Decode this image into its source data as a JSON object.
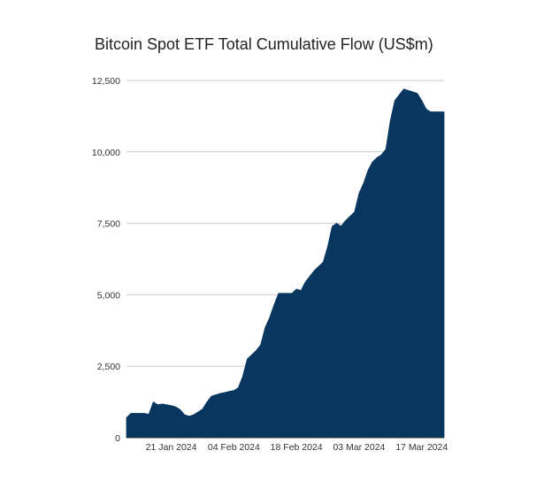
{
  "chart_data": {
    "type": "area",
    "title": "Bitcoin Spot ETF Total Cumulative Flow (US$m)",
    "xlabel": "",
    "ylabel": "",
    "ylim": [
      0,
      12500
    ],
    "y_ticks": [
      0,
      2500,
      5000,
      7500,
      10000,
      12500
    ],
    "y_tick_labels": [
      "0",
      "2,500",
      "5,000",
      "7,500",
      "10,000",
      "12,500"
    ],
    "x_range": [
      "2024-01-11",
      "2024-03-22"
    ],
    "x_ticks": [
      "2024-01-21",
      "2024-02-04",
      "2024-02-18",
      "2024-03-03",
      "2024-03-17"
    ],
    "x_tick_labels": [
      "21 Jan 2024",
      "04 Feb 2024",
      "18 Feb 2024",
      "03 Mar 2024",
      "17 Mar 2024"
    ],
    "grid": true,
    "legend": "none",
    "color": "#08365f",
    "series": [
      {
        "x": [
          "2024-01-11",
          "2024-01-12",
          "2024-01-13",
          "2024-01-14",
          "2024-01-15",
          "2024-01-16",
          "2024-01-17",
          "2024-01-18",
          "2024-01-19",
          "2024-01-20",
          "2024-01-21",
          "2024-01-22",
          "2024-01-23",
          "2024-01-24",
          "2024-01-25",
          "2024-01-26",
          "2024-01-27",
          "2024-01-28",
          "2024-01-29",
          "2024-01-30",
          "2024-01-31",
          "2024-02-01",
          "2024-02-02",
          "2024-02-03",
          "2024-02-04",
          "2024-02-05",
          "2024-02-06",
          "2024-02-07",
          "2024-02-08",
          "2024-02-09",
          "2024-02-10",
          "2024-02-11",
          "2024-02-12",
          "2024-02-13",
          "2024-02-14",
          "2024-02-15",
          "2024-02-16",
          "2024-02-17",
          "2024-02-18",
          "2024-02-19",
          "2024-02-20",
          "2024-02-21",
          "2024-02-22",
          "2024-02-23",
          "2024-02-24",
          "2024-02-25",
          "2024-02-26",
          "2024-02-27",
          "2024-02-28",
          "2024-02-29",
          "2024-03-01",
          "2024-03-02",
          "2024-03-03",
          "2024-03-04",
          "2024-03-05",
          "2024-03-06",
          "2024-03-07",
          "2024-03-08",
          "2024-03-09",
          "2024-03-10",
          "2024-03-11",
          "2024-03-12",
          "2024-03-13",
          "2024-03-14",
          "2024-03-15",
          "2024-03-16",
          "2024-03-17",
          "2024-03-18",
          "2024-03-19",
          "2024-03-20",
          "2024-03-21",
          "2024-03-22"
        ],
        "values": [
          700,
          850,
          850,
          850,
          850,
          820,
          1250,
          1150,
          1180,
          1150,
          1120,
          1080,
          980,
          800,
          750,
          800,
          900,
          1000,
          1250,
          1450,
          1500,
          1550,
          1580,
          1620,
          1650,
          1750,
          2150,
          2750,
          2900,
          3050,
          3250,
          3850,
          4200,
          4650,
          5050,
          5050,
          5050,
          5050,
          5200,
          5150,
          5450,
          5650,
          5850,
          6000,
          6150,
          6700,
          7400,
          7500,
          7400,
          7600,
          7750,
          7900,
          8550,
          8900,
          9350,
          9650,
          9800,
          9900,
          10100,
          11100,
          11800,
          12000,
          12200,
          12150,
          12100,
          12050,
          11800,
          11500,
          11400,
          11400,
          11400,
          11400
        ]
      }
    ]
  }
}
